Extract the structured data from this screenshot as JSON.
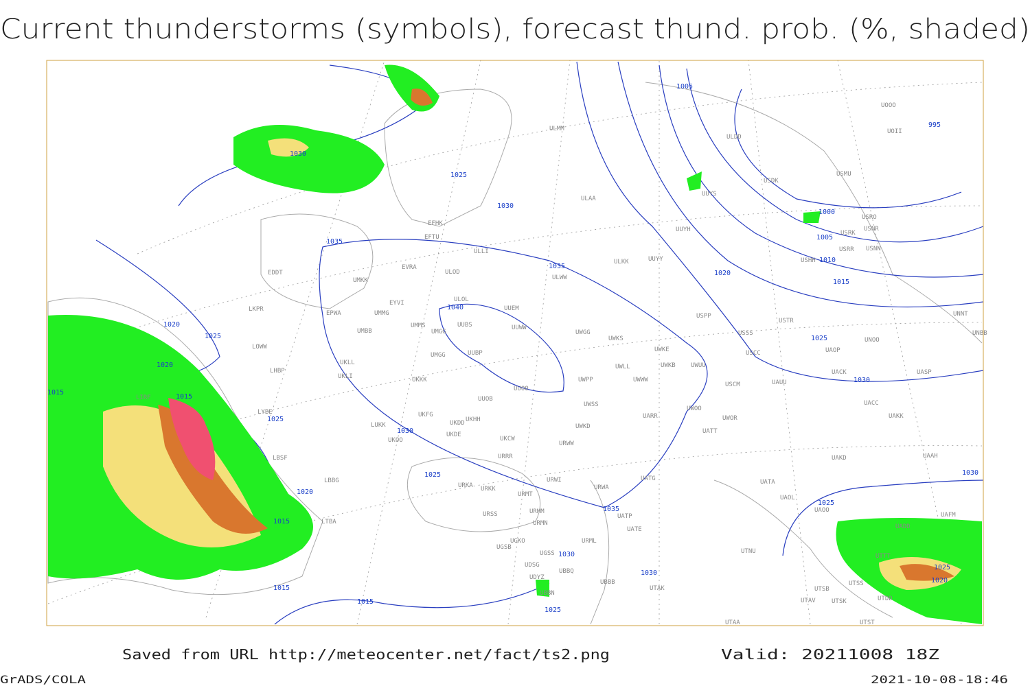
{
  "header": {
    "title": "Current thunderstorms (symbols), forecast thund. prob. (%, shaded)"
  },
  "map": {
    "isobar_labels": [
      1005,
      995,
      1030,
      1025,
      1030,
      1035,
      1035,
      1040,
      1020,
      1025,
      1020,
      1015,
      1015,
      1025,
      1030,
      1025,
      1020,
      1015,
      1015,
      1015,
      1030,
      1025,
      1030,
      1035,
      1000,
      1005,
      1010,
      1015,
      1020,
      1025,
      1030,
      1030,
      1025,
      1025,
      1020
    ],
    "stations": [
      "ULMM",
      "ULAA",
      "EFHK",
      "EFTU",
      "ULLI",
      "EVRA",
      "ULOD",
      "EDDT",
      "UMKK",
      "ULWW",
      "ULOL",
      "EYVI",
      "UUEM",
      "EPWA",
      "UMMG",
      "LKPR",
      "UUWW",
      "UMMS",
      "UMGG",
      "UUBS",
      "UMBB",
      "UWGG",
      "UWKS",
      "UKLL",
      "UUBP",
      "LOWW",
      "UMGG",
      "LHBP",
      "UKLI",
      "UKKK",
      "UWKE",
      "UWKB",
      "UWUU",
      "UWLL",
      "UWPP",
      "UWWW",
      "UUOO",
      "UUOB",
      "LYBE",
      "UKFG",
      "UKDD",
      "UKHH",
      "UWSS",
      "UARR",
      "UKOO",
      "UKDE",
      "UKCW",
      "UWKD",
      "URWW",
      "LUKK",
      "LBSF",
      "URRR",
      "UWOO",
      "UWOR",
      "UATT",
      "USCM",
      "UAUU",
      "USCC",
      "USSS",
      "USTR",
      "USPP",
      "UUYY",
      "UUYH",
      "ULKK",
      "UUYS",
      "ULDD",
      "USDK",
      "USMU",
      "USRO",
      "USRK",
      "USNR",
      "USRR",
      "USNN",
      "USHH",
      "UNNT",
      "UNBB",
      "UNOO",
      "UAOP",
      "UACK",
      "UASP",
      "UACC",
      "UAKK",
      "UAKD",
      "UAAH",
      "UATG",
      "UATA",
      "UAOL",
      "UAOO",
      "URWA",
      "URWI",
      "URKA",
      "URKK",
      "URMT",
      "URMM",
      "URSS",
      "URMN",
      "UGKO",
      "UGSB",
      "LTBA",
      "LBBG",
      "UGSS",
      "UDSG",
      "UBBB",
      "UBBQ",
      "UDYZ",
      "UBBN",
      "URML",
      "UATE",
      "UATP",
      "UTAK",
      "UTAA",
      "UTNU",
      "UTSB",
      "UTSS",
      "UTAV",
      "UTSK",
      "UTDD",
      "UTST",
      "UTTT",
      "UAFM",
      "UADD",
      "UOOO",
      "UOII",
      "LIRF"
    ]
  },
  "footer": {
    "source": "Saved from URL http://meteocenter.net/fact/ts2.png",
    "valid": "Valid: 20211008 18Z",
    "software": "GrADS/COLA",
    "timestamp": "2021-10-08-18:46"
  }
}
